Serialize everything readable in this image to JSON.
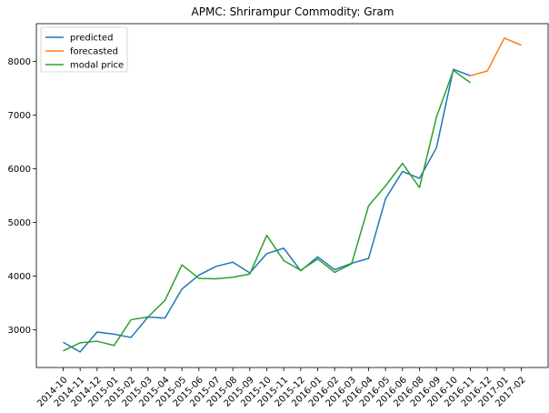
{
  "chart_data": {
    "type": "line",
    "title": "APMC: Shrirampur  Commodity: Gram",
    "xlabel": "",
    "ylabel": "",
    "categories": [
      "2014-10",
      "2014-11",
      "2014-12",
      "2015-01",
      "2015-02",
      "2015-03",
      "2015-04",
      "2015-05",
      "2015-06",
      "2015-07",
      "2015-08",
      "2015-09",
      "2015-10",
      "2015-11",
      "2015-12",
      "2016-01",
      "2016-02",
      "2016-03",
      "2016-04",
      "2016-05",
      "2016-06",
      "2016-08",
      "2016-09",
      "2016-10",
      "2016-11",
      "2016-12",
      "2017-01",
      "2017-02"
    ],
    "ylim": [
      2300,
      8700
    ],
    "yticks": [
      3000,
      4000,
      5000,
      6000,
      7000,
      8000
    ],
    "grid": false,
    "legend_position": "top-left",
    "series": [
      {
        "name": "predicted",
        "color": "#1f77b4",
        "values": [
          2770,
          2590,
          2960,
          2920,
          2860,
          3240,
          3220,
          3760,
          4020,
          4180,
          4260,
          4060,
          4420,
          4520,
          4100,
          4360,
          4120,
          4240,
          4330,
          5440,
          5950,
          5820,
          6390,
          7850,
          7730,
          null,
          null,
          null
        ]
      },
      {
        "name": "forecasted",
        "color": "#ff7f0e",
        "values": [
          null,
          null,
          null,
          null,
          null,
          null,
          null,
          null,
          null,
          null,
          null,
          null,
          null,
          null,
          null,
          null,
          null,
          null,
          null,
          null,
          null,
          null,
          null,
          null,
          7730,
          7820,
          8430,
          8300
        ]
      },
      {
        "name": "modal price",
        "color": "#2ca02c",
        "values": [
          2610,
          2760,
          2790,
          2710,
          3190,
          3240,
          3550,
          4210,
          3960,
          3950,
          3980,
          4040,
          4760,
          4290,
          4110,
          4320,
          4070,
          4230,
          5310,
          5680,
          6100,
          5650,
          6960,
          7830,
          7600,
          null,
          null,
          null
        ]
      }
    ]
  }
}
